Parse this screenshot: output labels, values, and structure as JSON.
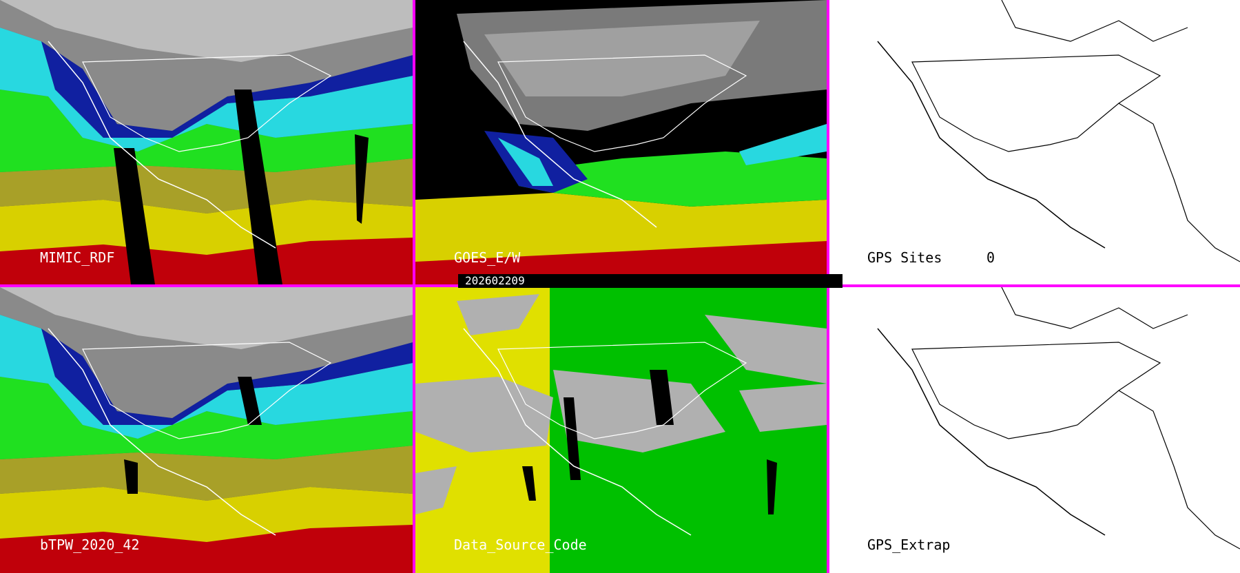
{
  "panels": [
    {
      "id": "mimic",
      "label": "MIMIC_RDF",
      "theme": "tpw"
    },
    {
      "id": "goes",
      "label": "GOES_E/W",
      "theme": "goes"
    },
    {
      "id": "gps",
      "label": "GPS Sites",
      "count": "0",
      "theme": "blank"
    },
    {
      "id": "btpw",
      "label": "bTPW_2020_42",
      "theme": "tpw"
    },
    {
      "id": "dsc",
      "label": "Data_Source_Code",
      "theme": "dsc"
    },
    {
      "id": "gpsx",
      "label": "GPS_Extrap",
      "theme": "blank"
    }
  ],
  "date_strip": "202602209",
  "colors": {
    "divider": "#ff00ff",
    "tpw_red": "#c0000a",
    "tpw_yellow": "#d8d000",
    "tpw_khaki": "#a8a028",
    "tpw_green": "#20e020",
    "tpw_cyan": "#28d8e0",
    "tpw_blue": "#1020a0",
    "tpw_gray": "#8a8a8a",
    "dsc_gray": "#b0b0b0",
    "dsc_yellow": "#e0e000",
    "dsc_green": "#00c000"
  }
}
